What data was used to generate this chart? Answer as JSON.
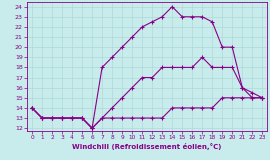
{
  "xlabel": "Windchill (Refroidissement éolien,°C)",
  "bg_color": "#c8ecec",
  "line_color": "#880088",
  "xlim": [
    -0.5,
    23.5
  ],
  "ylim": [
    11.7,
    24.5
  ],
  "xticks": [
    0,
    1,
    2,
    3,
    4,
    5,
    6,
    7,
    8,
    9,
    10,
    11,
    12,
    13,
    14,
    15,
    16,
    17,
    18,
    19,
    20,
    21,
    22,
    23
  ],
  "yticks": [
    12,
    13,
    14,
    15,
    16,
    17,
    18,
    19,
    20,
    21,
    22,
    23,
    24
  ],
  "line1_x": [
    0,
    1,
    2,
    3,
    4,
    5,
    6,
    7,
    8,
    9,
    10,
    11,
    12,
    13,
    14,
    15,
    16,
    17,
    18,
    19,
    20,
    21,
    22,
    23
  ],
  "line1_y": [
    14,
    13,
    13,
    13,
    13,
    13,
    12,
    13,
    13,
    13,
    13,
    13,
    13,
    13,
    14,
    14,
    14,
    14,
    14,
    15,
    15,
    15,
    15,
    15
  ],
  "line2_x": [
    0,
    1,
    2,
    3,
    4,
    5,
    6,
    7,
    8,
    9,
    10,
    11,
    12,
    13,
    14,
    15,
    16,
    17,
    18,
    19,
    20,
    21,
    22,
    23
  ],
  "line2_y": [
    14,
    13,
    13,
    13,
    13,
    13,
    12,
    13,
    14,
    15,
    16,
    17,
    17,
    18,
    18,
    18,
    18,
    19,
    18,
    18,
    18,
    16,
    15,
    15
  ],
  "line3_x": [
    0,
    1,
    2,
    3,
    4,
    5,
    6,
    7,
    8,
    9,
    10,
    11,
    12,
    13,
    14,
    15,
    16,
    17,
    18,
    19,
    20,
    21,
    22,
    23
  ],
  "line3_y": [
    14,
    13,
    13,
    13,
    13,
    13,
    12,
    18,
    19,
    20,
    21,
    22,
    22.5,
    23,
    24,
    23,
    23,
    23,
    22.5,
    20,
    20,
    16,
    15.5,
    15
  ]
}
